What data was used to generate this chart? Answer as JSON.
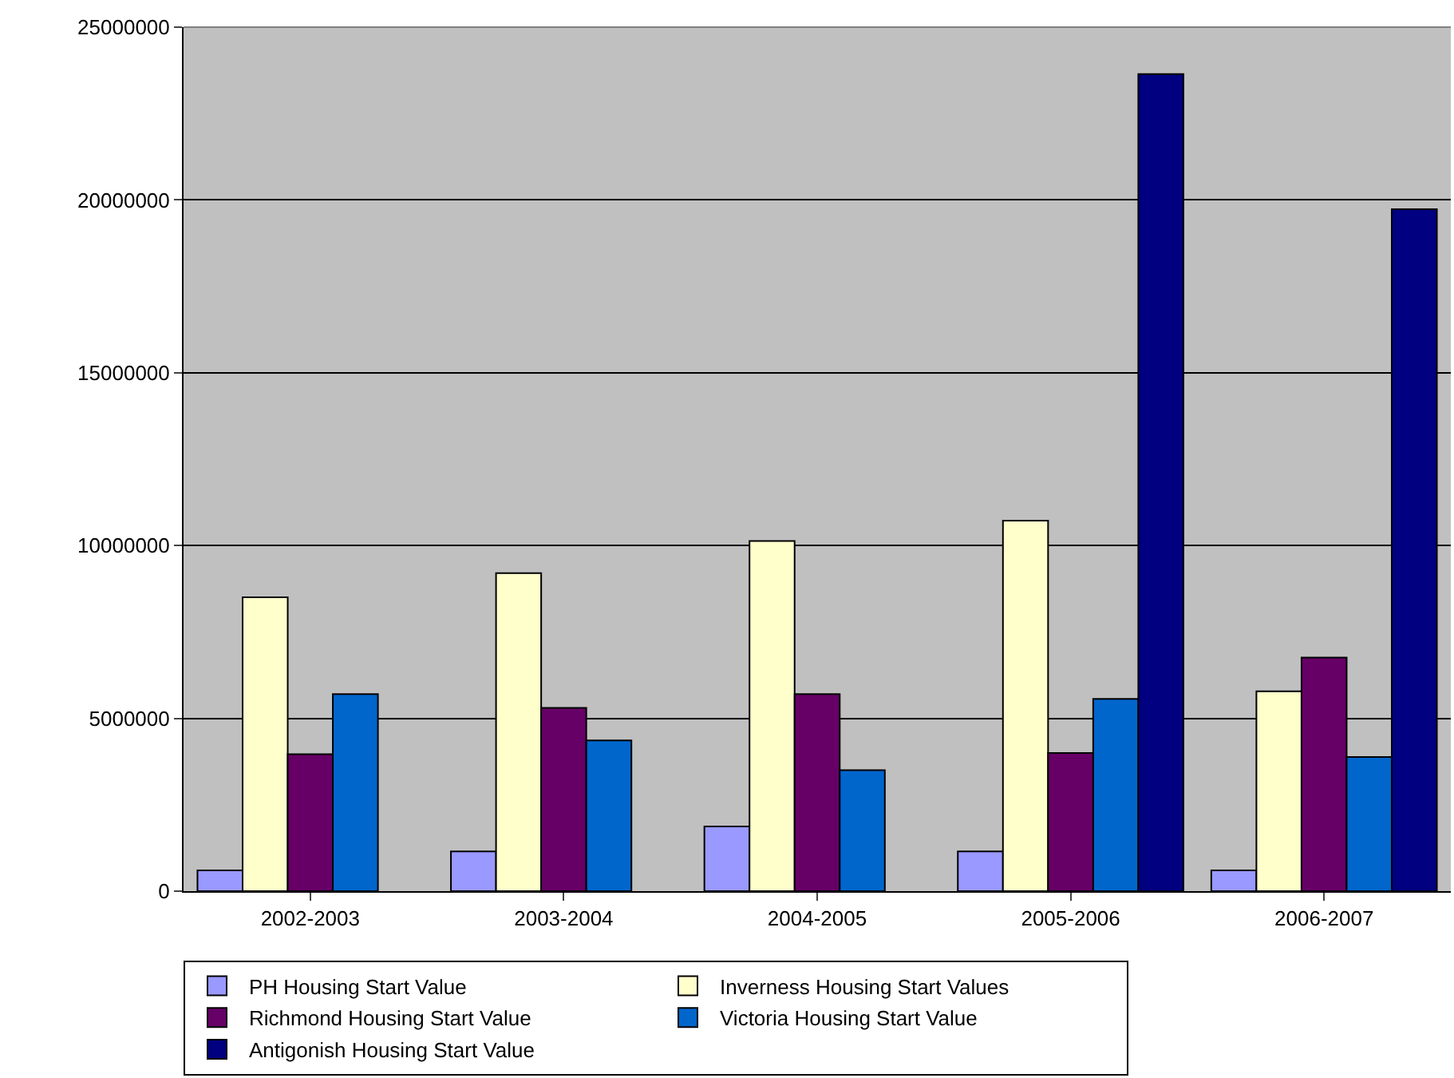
{
  "chart_data": {
    "type": "bar",
    "categories": [
      "2002-2003",
      "2003-2004",
      "2004-2005",
      "2005-2006",
      "2006-2007"
    ],
    "series": [
      {
        "name": "PH Housing Start Value",
        "color": "#9999ff",
        "values": [
          600000,
          1150000,
          1870000,
          1150000,
          600000
        ]
      },
      {
        "name": "Inverness Housing Start Values",
        "color": "#ffffcc",
        "values": [
          8500000,
          9200000,
          10130000,
          10720000,
          5780000
        ]
      },
      {
        "name": "Richmond Housing Start Value",
        "color": "#660066",
        "values": [
          3960000,
          5300000,
          5700000,
          4000000,
          6760000
        ]
      },
      {
        "name": "Victoria Housing Start Value",
        "color": "#0066cc",
        "values": [
          5700000,
          4360000,
          3500000,
          5560000,
          3880000
        ]
      },
      {
        "name": "Antigonish Housing Start Value",
        "color": "#000080",
        "values": [
          null,
          null,
          null,
          23640000,
          19730000
        ]
      }
    ],
    "ylim": [
      0,
      25000000
    ],
    "yticks": [
      0,
      5000000,
      10000000,
      15000000,
      20000000,
      25000000
    ],
    "grid": "y",
    "legend": "bottom"
  }
}
